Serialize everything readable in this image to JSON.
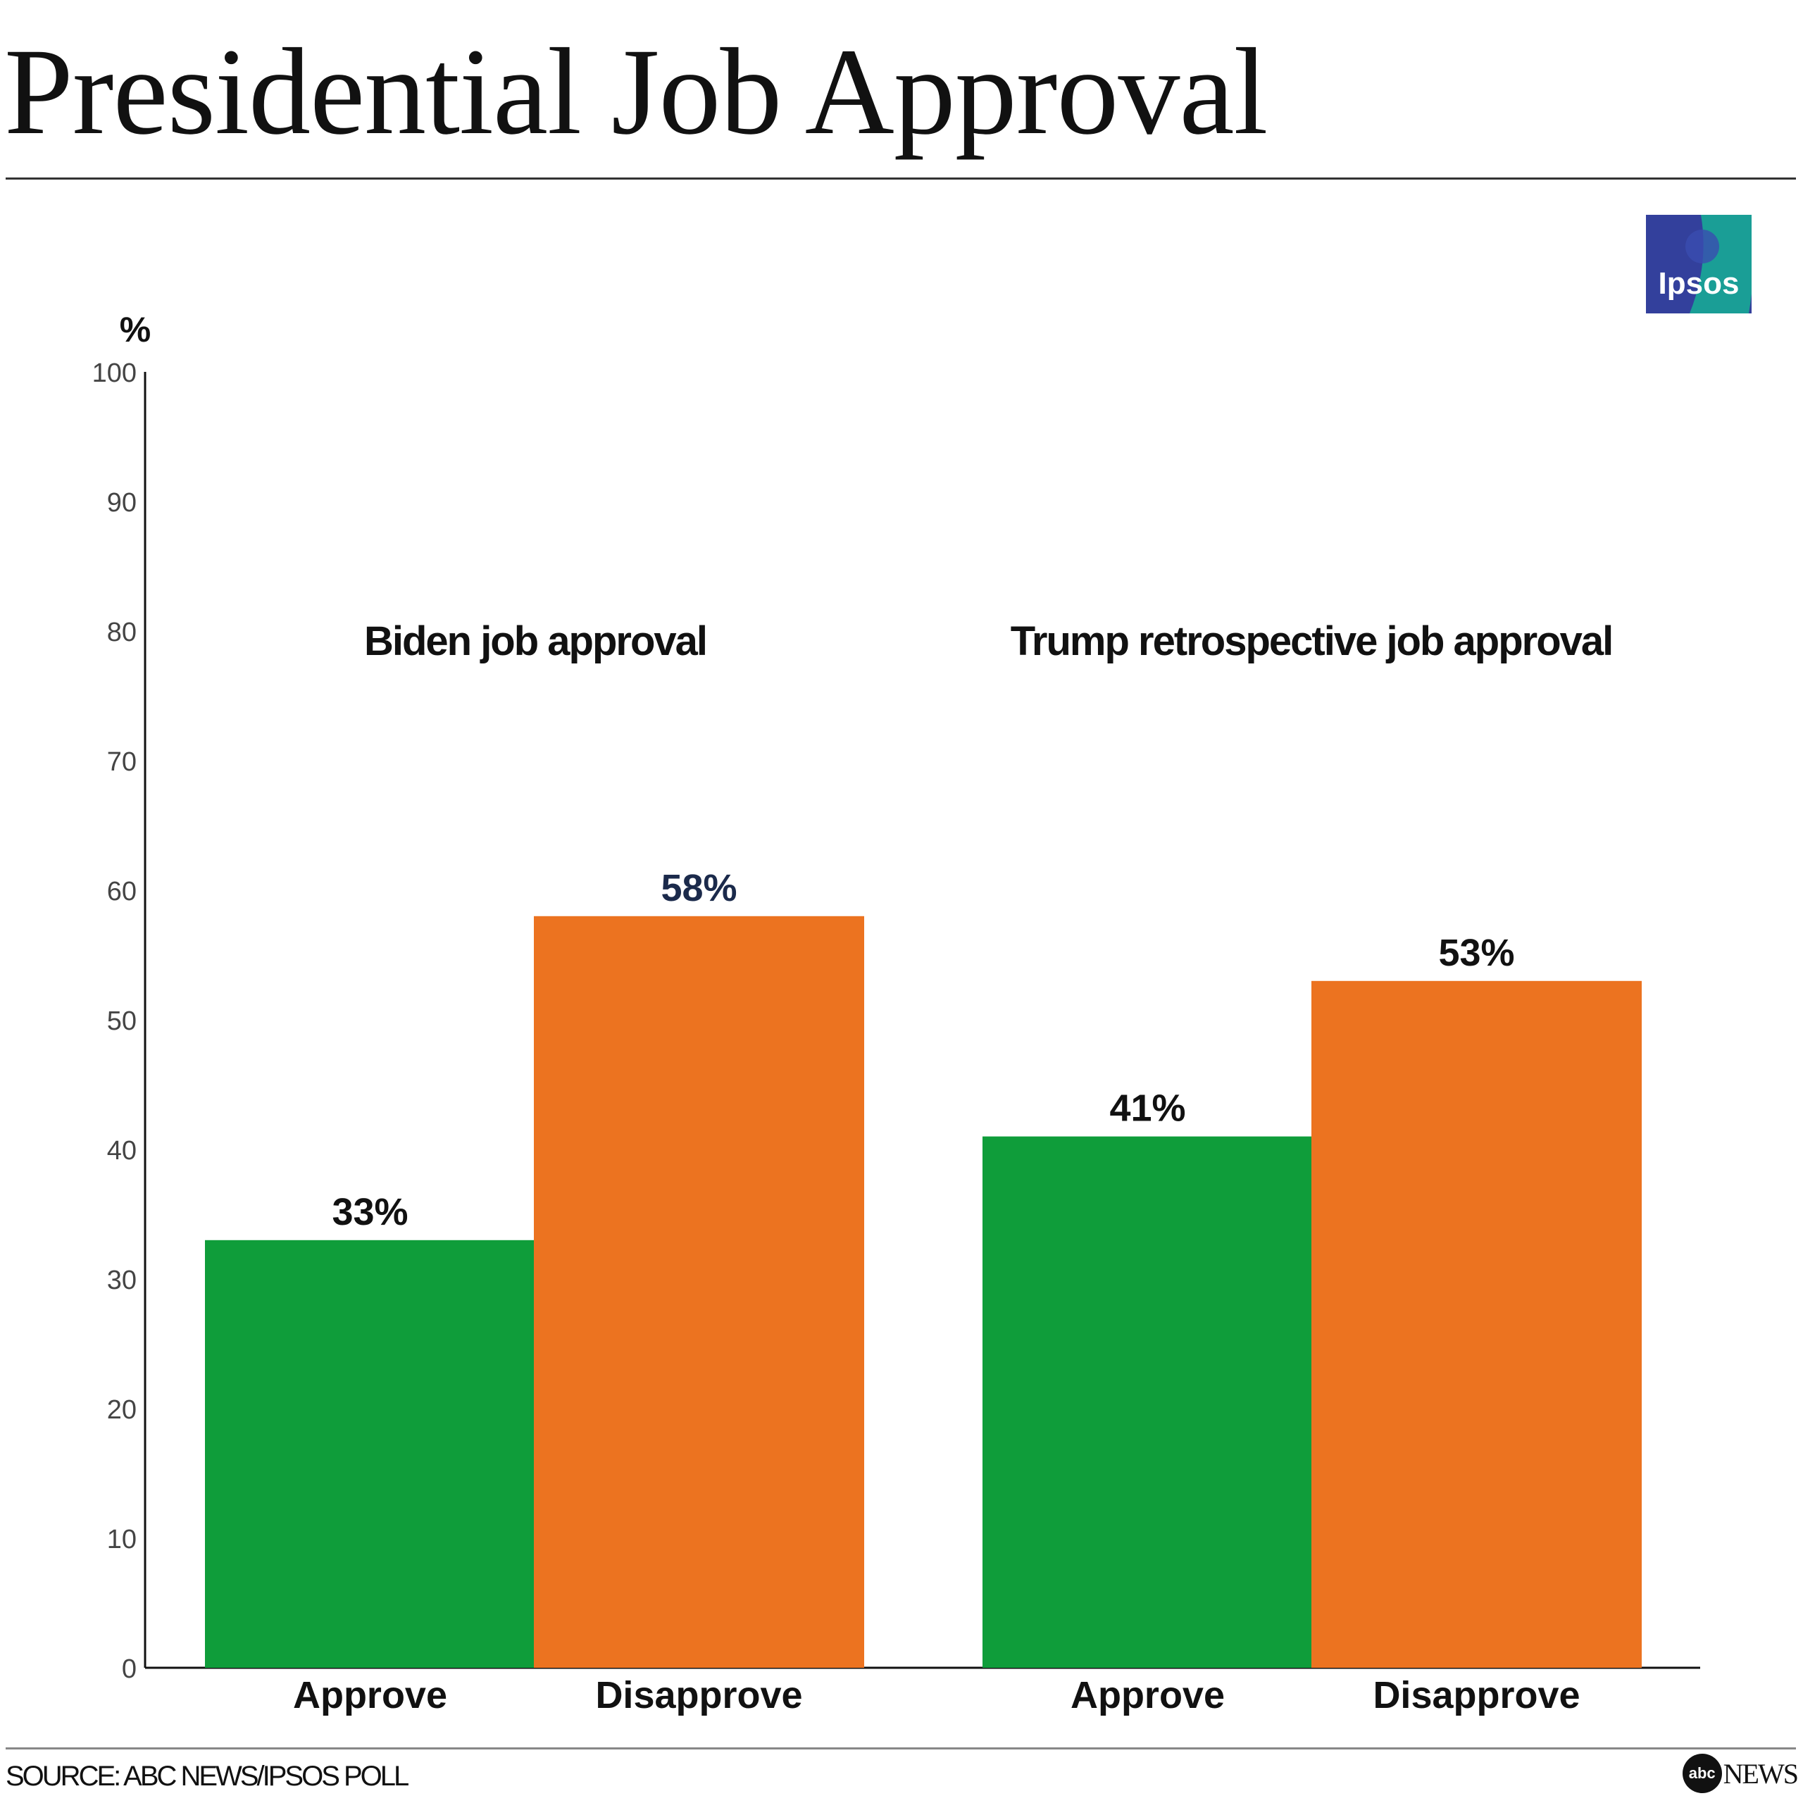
{
  "title": "Presidential Job Approval",
  "source": "SOURCE: ABC NEWS/IPSOS POLL",
  "logos": {
    "ipsos": "Ipsos",
    "abc": "abc",
    "abc_news": "NEWS"
  },
  "colors": {
    "approve": "#0f9d3a",
    "disapprove": "#ec7320",
    "label_dark": "#1b2a4b"
  },
  "chart_data": {
    "type": "bar",
    "title": "Presidential Job Approval",
    "ylabel": "%",
    "ylim": [
      0,
      100
    ],
    "yticks": [
      0,
      10,
      20,
      30,
      40,
      50,
      60,
      70,
      80,
      90,
      100
    ],
    "grid": false,
    "groups": [
      {
        "name": "Biden job approval",
        "categories": [
          "Approve",
          "Disapprove"
        ],
        "values": [
          33,
          58
        ],
        "labels": [
          "33%",
          "58%"
        ]
      },
      {
        "name": "Trump retrospective job approval",
        "categories": [
          "Approve",
          "Disapprove"
        ],
        "values": [
          41,
          53
        ],
        "labels": [
          "41%",
          "53%"
        ]
      }
    ]
  }
}
